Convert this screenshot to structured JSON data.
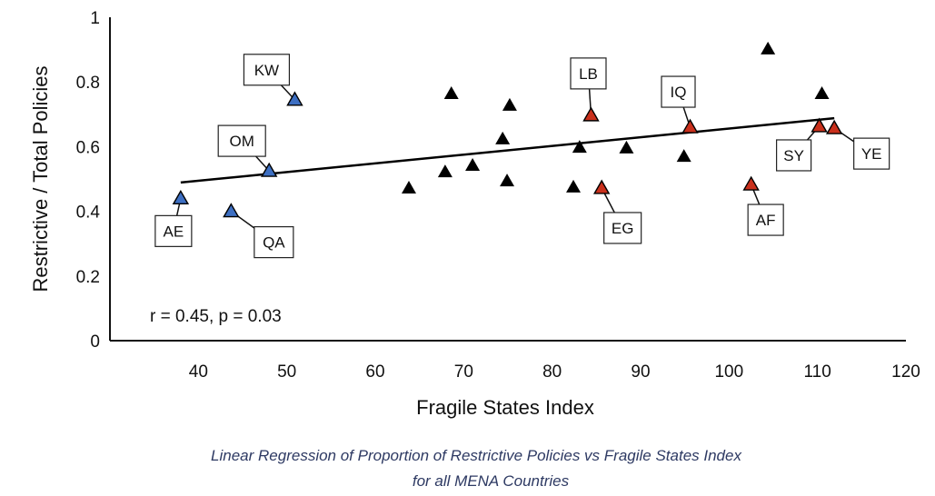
{
  "chart_data": {
    "type": "scatter",
    "xlabel": "Fragile States Index",
    "ylabel": "Restrictive / Total Policies",
    "xlim": [
      30,
      120
    ],
    "ylim": [
      0,
      1
    ],
    "xticks": [
      "40",
      "50",
      "60",
      "70",
      "80",
      "90",
      "100",
      "110",
      "120"
    ],
    "yticks": [
      "0",
      "0.2",
      "0.4",
      "0.6",
      "0.8",
      "1"
    ],
    "grid": false,
    "annotation": "r = 0.45, p = 0.03",
    "colors": {
      "blue": "#3d6fc2",
      "red": "#c9301c",
      "black": "#000000"
    },
    "points": [
      {
        "label": "AE",
        "x": 38.0,
        "y": 0.44,
        "color": "blue"
      },
      {
        "label": "QA",
        "x": 43.7,
        "y": 0.4,
        "color": "blue"
      },
      {
        "label": "OM",
        "x": 48.0,
        "y": 0.525,
        "color": "blue"
      },
      {
        "label": "KW",
        "x": 50.9,
        "y": 0.745,
        "color": "blue"
      },
      {
        "x": 63.8,
        "y": 0.472,
        "color": "black"
      },
      {
        "x": 67.9,
        "y": 0.522,
        "color": "black"
      },
      {
        "x": 68.6,
        "y": 0.764,
        "color": "black"
      },
      {
        "x": 71.0,
        "y": 0.542,
        "color": "black"
      },
      {
        "x": 74.4,
        "y": 0.624,
        "color": "black"
      },
      {
        "x": 74.9,
        "y": 0.494,
        "color": "black"
      },
      {
        "x": 75.2,
        "y": 0.728,
        "color": "black"
      },
      {
        "x": 82.4,
        "y": 0.475,
        "color": "black"
      },
      {
        "x": 83.1,
        "y": 0.598,
        "color": "black"
      },
      {
        "x": 88.4,
        "y": 0.596,
        "color": "black"
      },
      {
        "x": 94.9,
        "y": 0.57,
        "color": "black"
      },
      {
        "x": 104.4,
        "y": 0.902,
        "color": "black"
      },
      {
        "x": 110.5,
        "y": 0.764,
        "color": "black"
      },
      {
        "label": "LB",
        "x": 84.4,
        "y": 0.697,
        "color": "red"
      },
      {
        "label": "EG",
        "x": 85.6,
        "y": 0.472,
        "color": "red"
      },
      {
        "label": "IQ",
        "x": 95.6,
        "y": 0.66,
        "color": "red"
      },
      {
        "label": "AF",
        "x": 102.5,
        "y": 0.483,
        "color": "red"
      },
      {
        "label": "SY",
        "x": 110.2,
        "y": 0.663,
        "color": "red"
      },
      {
        "label": "YE",
        "x": 111.9,
        "y": 0.657,
        "color": "red"
      }
    ],
    "trendline": {
      "x": [
        38.0,
        111.9
      ],
      "y": [
        0.489,
        0.688
      ]
    }
  },
  "caption": {
    "line1": "Linear Regression of Proportion of Restrictive Policies vs Fragile States Index",
    "line2": "for all MENA Countries"
  }
}
